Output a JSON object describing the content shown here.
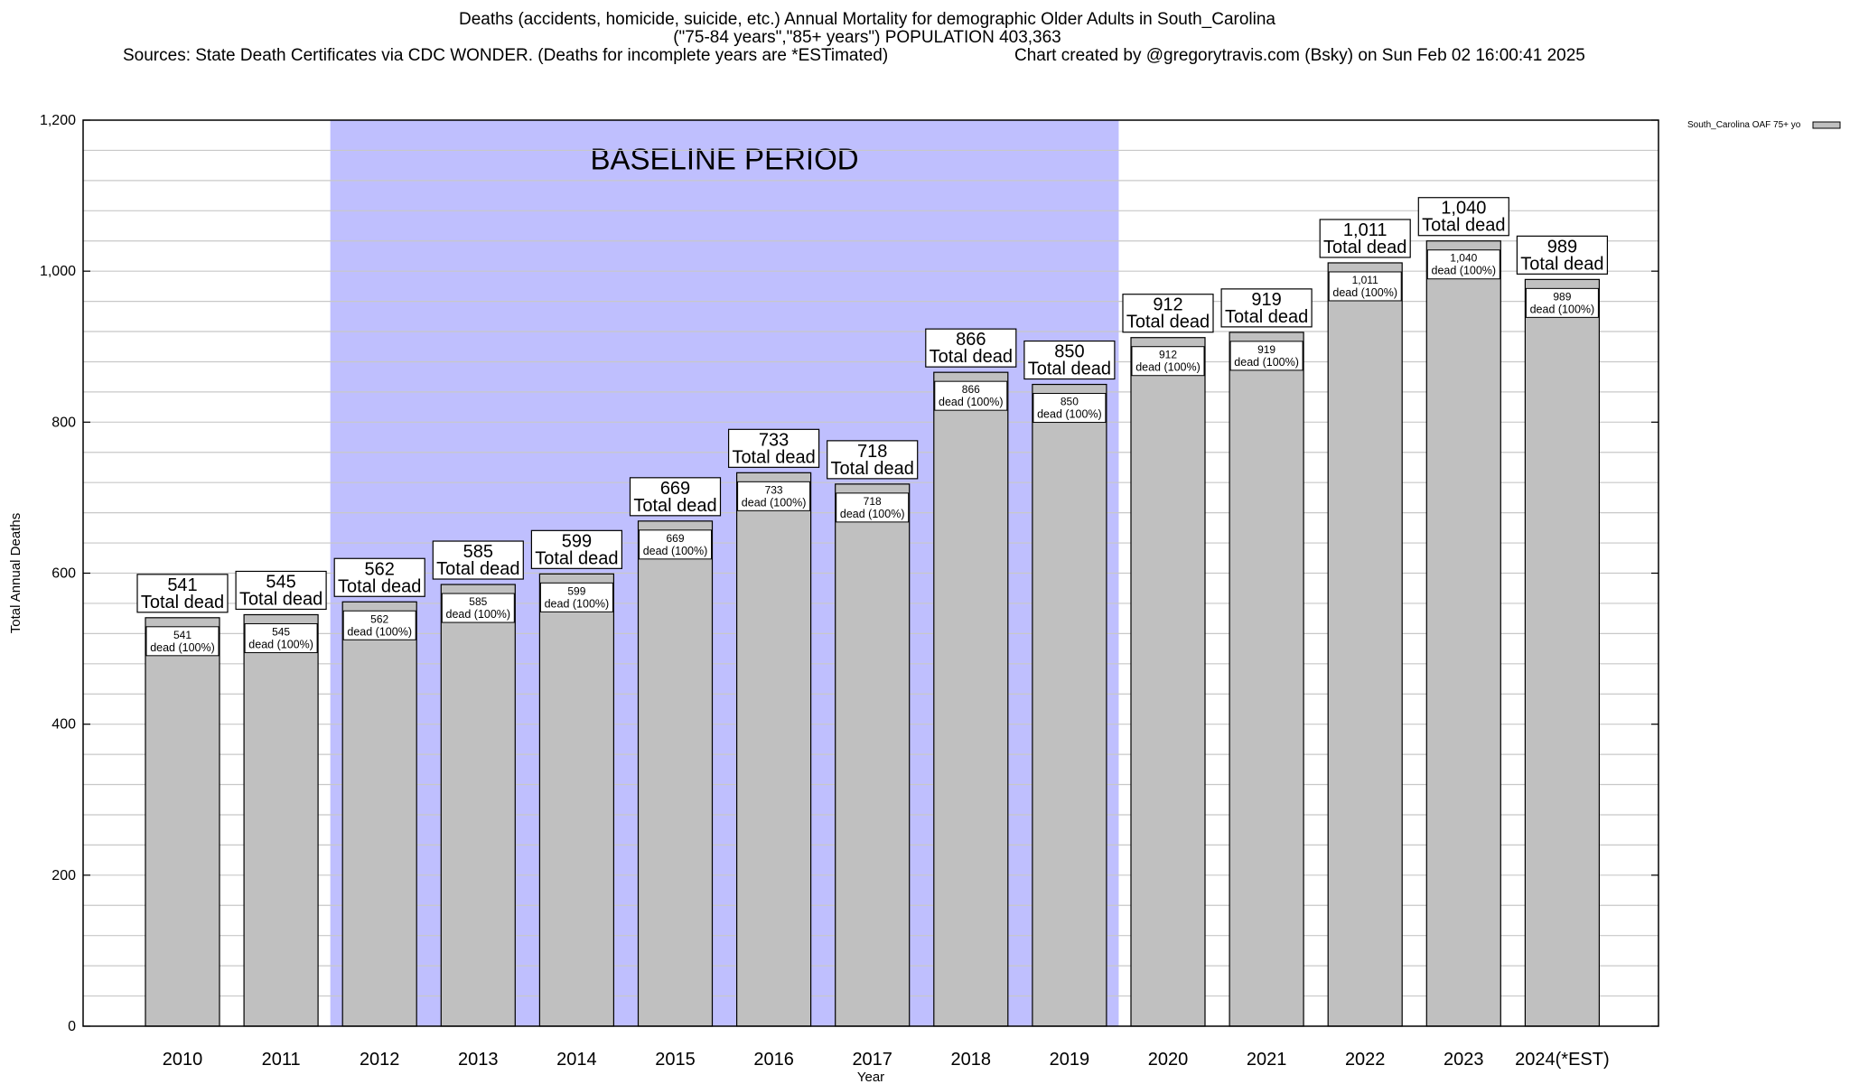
{
  "chart_data": {
    "type": "bar",
    "title": "Deaths (accidents, homicide, suicide, etc.) Annual Mortality for demographic Older Adults in South_Carolina",
    "subtitle": "(\"75-84 years\",\"85+ years\") POPULATION 403,363",
    "sources": "Sources: State Death Certificates via CDC WONDER. (Deaths for incomplete years are *ESTimated)",
    "credit": "Chart created by @gregorytravis.com (Bsky) on Sun Feb 02 16:00:41 2025",
    "xlabel": "Year",
    "ylabel": "Total Annual Deaths",
    "ylim": [
      0,
      1200
    ],
    "yticks": [
      0,
      200,
      400,
      600,
      800,
      1000,
      1200
    ],
    "ytick_labels": [
      "0",
      "200",
      "400",
      "600",
      "800",
      "1,000",
      "1,200"
    ],
    "grid": true,
    "legend": {
      "position": "top-right",
      "entries": [
        "South_Carolina OAF 75+ yo"
      ]
    },
    "baseline_label": "BASELINE PERIOD",
    "baseline_range": [
      "2012",
      "2019"
    ],
    "categories": [
      "2010",
      "2011",
      "2012",
      "2013",
      "2014",
      "2015",
      "2016",
      "2017",
      "2018",
      "2019",
      "2020",
      "2021",
      "2022",
      "2023",
      "2024(*EST)"
    ],
    "series": [
      {
        "name": "South_Carolina OAF 75+ yo",
        "values": [
          541,
          545,
          562,
          585,
          599,
          669,
          733,
          718,
          866,
          850,
          912,
          919,
          1011,
          1040,
          989
        ]
      }
    ],
    "value_labels": [
      "541",
      "545",
      "562",
      "585",
      "599",
      "669",
      "733",
      "718",
      "866",
      "850",
      "912",
      "919",
      "1,011",
      "1,040",
      "989"
    ],
    "total_label_suffix": "Total dead",
    "inner_label_suffix": "dead (100%)",
    "colors": {
      "bar": "#c0c0c0",
      "baseline": "#bfbffe",
      "grid": "#c8c8c8"
    }
  }
}
